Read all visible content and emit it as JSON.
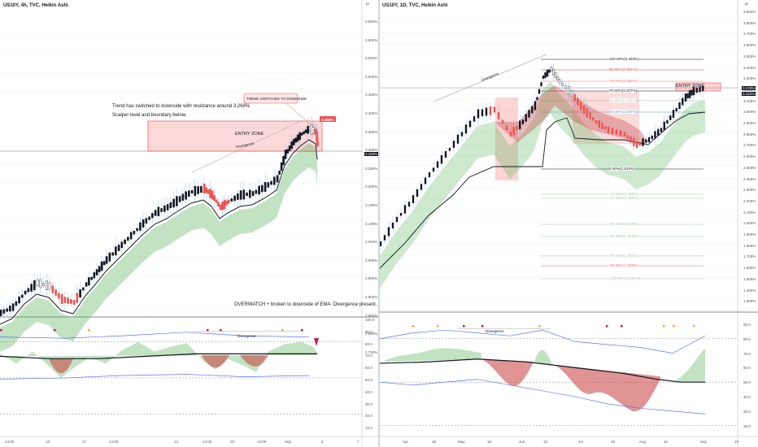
{
  "left": {
    "title": "US10Y, 4h, TVC, Heikin Ashi",
    "annotation_trend": "Trend has switched to downside with resistance around 3.269%",
    "annotation_scalper": "Scalper level and boundary below.",
    "annotation_overwatch": "OVERWATCH + broken to downside of EMA. Divergence present.",
    "callout": "TREND SWITCHED TO DOWNSIDE",
    "entry_zone": "ENTRY ZONE",
    "divergence_price": "Divergence",
    "divergence_osc": "Divergence",
    "price_badge": "3.268%",
    "last_price": "3.183%",
    "price_unit": "pt",
    "price_axis": [
      "3.650%",
      "3.600%",
      "3.550%",
      "3.500%",
      "3.450%",
      "3.400%",
      "3.350%",
      "3.300%",
      "3.250%",
      "3.200%",
      "3.150%",
      "3.100%",
      "3.050%",
      "3.000%",
      "2.950%",
      "2.900%",
      "2.850%",
      "2.800%",
      "2.750%"
    ],
    "osc_axis": [
      "100.0",
      "90.0",
      "80.0",
      "70.0",
      "60.0",
      "50.0",
      "40.0",
      "30.0",
      "20.0",
      "10.0"
    ],
    "time_axis": [
      "14:00",
      "15",
      "17",
      "14:00",
      "24",
      "14:00",
      "29",
      "14:00",
      "Sep",
      "5",
      "7"
    ]
  },
  "right": {
    "title": "US10Y, 1D, TVC, Heikin Ashi",
    "entry_zone": "ENTRY ZONE",
    "divergence_price": "Divergence",
    "divergence_osc": "Divergence",
    "last_price": "3.229%",
    "last_price2": "3.183%",
    "price_unit": "pt",
    "fib_levels": [
      "100.00%(3.493%)",
      "88.60%(3.382%)",
      "78.60%(3.285%)",
      "70.50%(3.207%)",
      "61.80%(3.121%)",
      "50.00%(3.008%)",
      "0.00%(2.524%)",
      "-23.60%(2.300%)",
      "-27.20%(2.260%)",
      "-50.00%(2.038%)",
      "-61.80%(1.924%)",
      "-78.60%(1.763%)",
      "-88.60%(1.665%)",
      "-100.00%(1.556%)"
    ],
    "price_axis": [
      "3.900%",
      "3.800%",
      "3.700%",
      "3.600%",
      "3.500%",
      "3.400%",
      "3.300%",
      "3.200%",
      "3.100%",
      "3.000%",
      "2.900%",
      "2.800%",
      "2.700%",
      "2.600%",
      "2.500%",
      "2.400%",
      "2.300%",
      "2.200%",
      "2.100%",
      "2.000%",
      "1.900%",
      "1.800%",
      "1.700%",
      "1.600%",
      "1.500%",
      "1.400%",
      "1.300%"
    ],
    "osc_axis": [
      "90.0",
      "80.0",
      "70.0",
      "60.0",
      "50.0",
      "40.0",
      "30.0",
      "20.0"
    ],
    "time_axis": [
      "Apr",
      "18",
      "May",
      "18",
      "Jun",
      "13",
      "Jul",
      "18",
      "Aug",
      "15",
      "Sep",
      "19"
    ]
  }
}
